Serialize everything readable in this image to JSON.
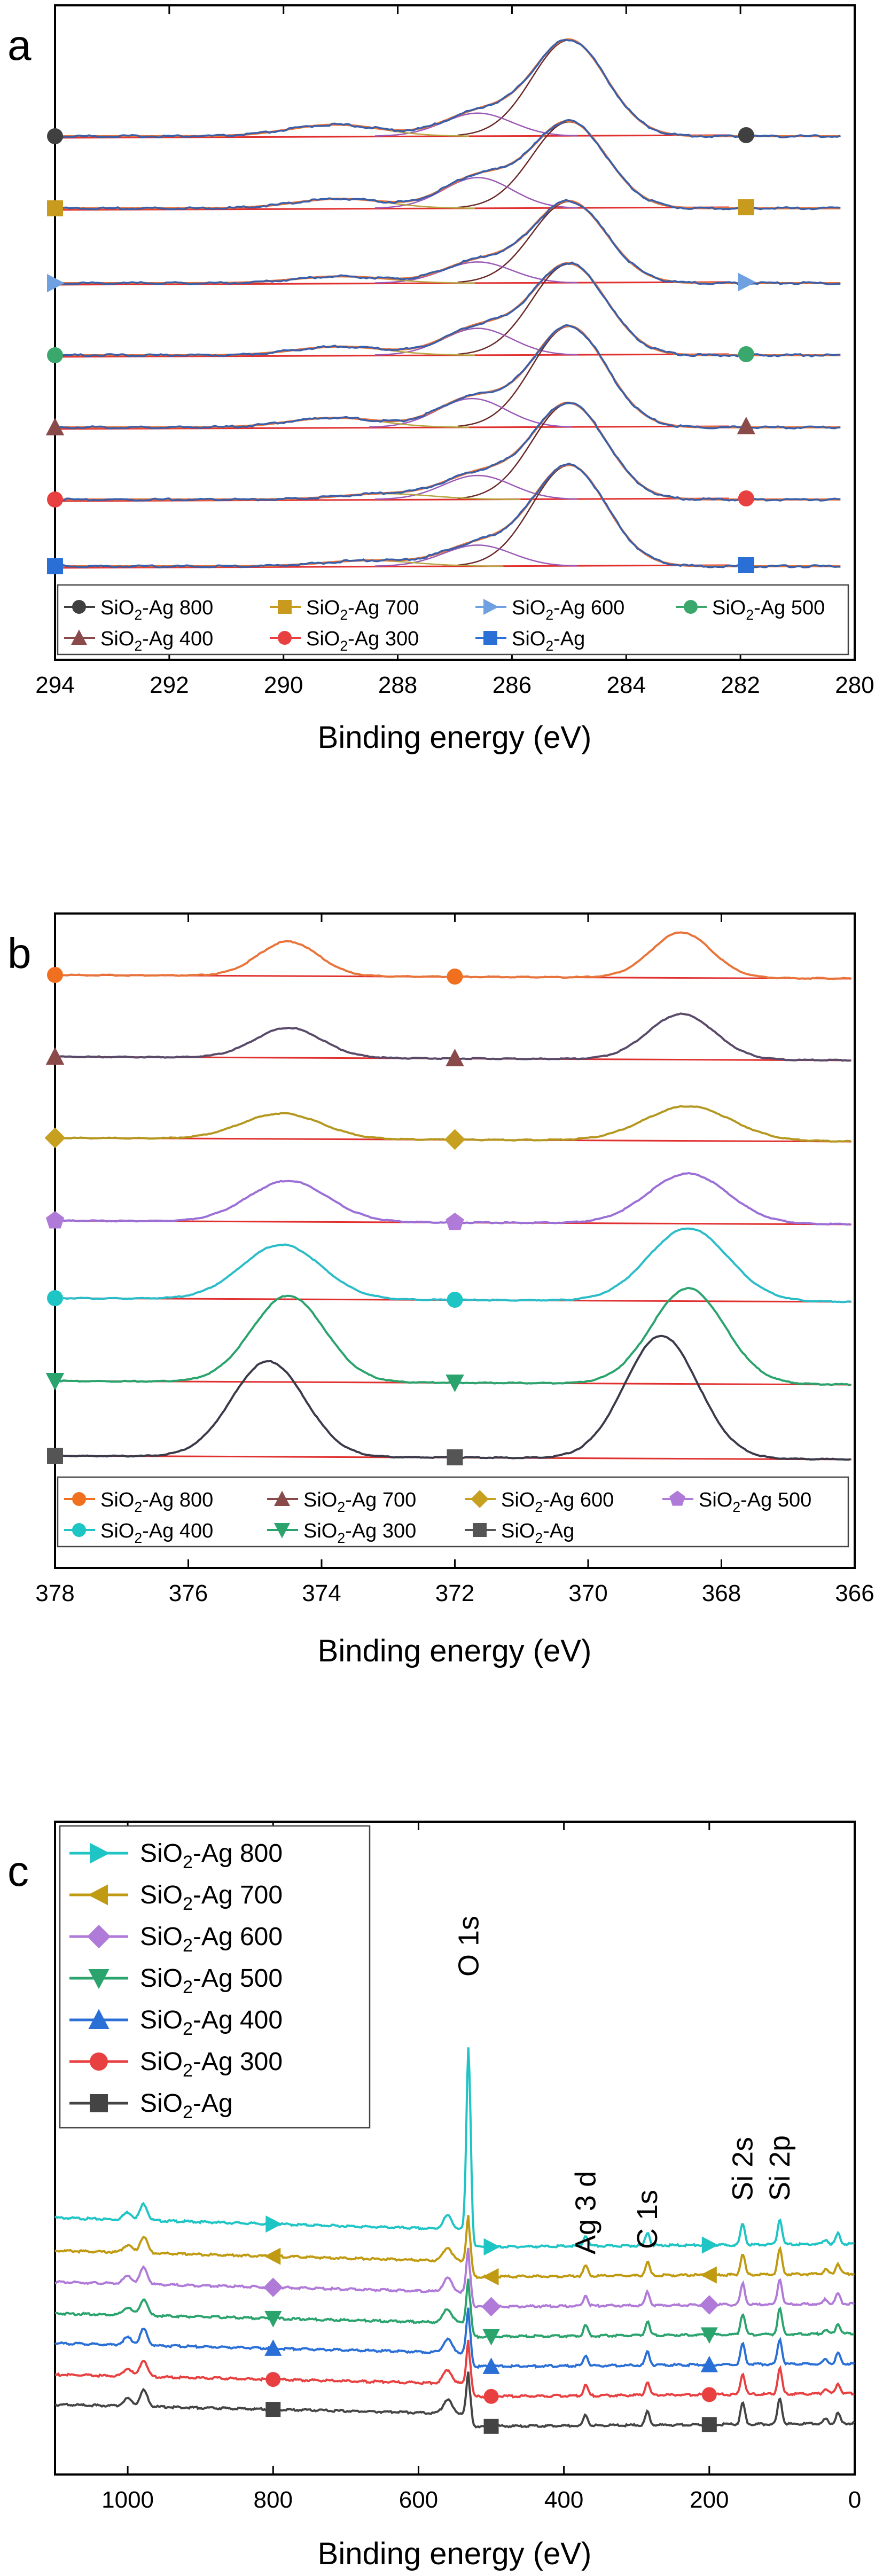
{
  "chart_data": [
    {
      "panel": "a",
      "type": "line",
      "title": "",
      "xlabel": "Binding energy (eV)",
      "ylabel": "",
      "xlim": [
        294,
        280
      ],
      "x_ticks": [
        294,
        292,
        290,
        288,
        286,
        284,
        282,
        280
      ],
      "x_tick_labels": [
        "294",
        "292",
        "290",
        "288",
        "286",
        "284",
        "282",
        "280"
      ],
      "fit_colors": {
        "envelope": "#e8743b",
        "background": "#e03030",
        "component_main": "#6b2a2a",
        "component_2": "#9b59b6",
        "component_3": "#b5a642"
      },
      "series": [
        {
          "name": "SiO2-Ag 800",
          "label_main": "SiO",
          "label_sub": "2",
          "label_rest": "-Ag 800",
          "color": "#3a5fa8",
          "marker": "circle",
          "marker_color": "#404040",
          "peaks": [
            {
              "center": 285.0,
              "amp": 1.0,
              "width": 0.65
            },
            {
              "center": 286.6,
              "amp": 0.24,
              "width": 0.6
            },
            {
              "center": 289.1,
              "amp": 0.12,
              "width": 0.8
            }
          ]
        },
        {
          "name": "SiO2-Ag 700",
          "label_main": "SiO",
          "label_sub": "2",
          "label_rest": "-Ag 700",
          "color": "#3a5fa8",
          "marker": "square",
          "marker_color": "#c89b1e",
          "peaks": [
            {
              "center": 285.0,
              "amp": 0.9,
              "width": 0.65
            },
            {
              "center": 286.6,
              "amp": 0.32,
              "width": 0.6
            },
            {
              "center": 289.0,
              "amp": 0.1,
              "width": 0.8
            }
          ]
        },
        {
          "name": "SiO2-Ag 600",
          "label_main": "SiO",
          "label_sub": "2",
          "label_rest": "-Ag 600",
          "color": "#3a5fa8",
          "marker": "triangle-right",
          "marker_color": "#6fa0e0",
          "peaks": [
            {
              "center": 285.0,
              "amp": 0.85,
              "width": 0.65
            },
            {
              "center": 286.6,
              "amp": 0.22,
              "width": 0.6
            },
            {
              "center": 289.0,
              "amp": 0.07,
              "width": 0.8
            }
          ]
        },
        {
          "name": "SiO2-Ag 500",
          "label_main": "SiO",
          "label_sub": "2",
          "label_rest": "-Ag 500",
          "color": "#3a5fa8",
          "marker": "circle",
          "marker_color": "#3aa76d",
          "peaks": [
            {
              "center": 285.0,
              "amp": 0.95,
              "width": 0.65
            },
            {
              "center": 286.6,
              "amp": 0.28,
              "width": 0.6
            },
            {
              "center": 289.0,
              "amp": 0.09,
              "width": 0.8
            }
          ]
        },
        {
          "name": "SiO2-Ag 400",
          "label_main": "SiO",
          "label_sub": "2",
          "label_rest": "-Ag 400",
          "color": "#3a5fa8",
          "marker": "triangle-up",
          "marker_color": "#8b4a4a",
          "peaks": [
            {
              "center": 285.0,
              "amp": 1.05,
              "width": 0.65
            },
            {
              "center": 286.7,
              "amp": 0.3,
              "width": 0.6
            },
            {
              "center": 289.1,
              "amp": 0.1,
              "width": 0.8
            }
          ]
        },
        {
          "name": "SiO2-Ag 300",
          "label_main": "SiO",
          "label_sub": "2",
          "label_rest": "-Ag 300",
          "color": "#3a5fa8",
          "marker": "circle",
          "marker_color": "#e84040",
          "peaks": [
            {
              "center": 285.0,
              "amp": 1.0,
              "width": 0.65
            },
            {
              "center": 286.6,
              "amp": 0.25,
              "width": 0.6
            },
            {
              "center": 288.2,
              "amp": 0.06,
              "width": 0.8
            }
          ]
        },
        {
          "name": "SiO2-Ag",
          "label_main": "SiO",
          "label_sub": "2",
          "label_rest": "-Ag",
          "color": "#3a5fa8",
          "marker": "square",
          "marker_color": "#2a6fd6",
          "peaks": [
            {
              "center": 285.0,
              "amp": 1.05,
              "width": 0.65
            },
            {
              "center": 286.6,
              "amp": 0.22,
              "width": 0.6
            },
            {
              "center": 288.5,
              "amp": 0.06,
              "width": 0.8
            }
          ]
        }
      ]
    },
    {
      "panel": "b",
      "type": "line",
      "title": "",
      "xlabel": "Binding energy (eV)",
      "ylabel": "",
      "xlim": [
        378,
        366
      ],
      "x_ticks": [
        378,
        376,
        374,
        372,
        370,
        368,
        366
      ],
      "x_tick_labels": [
        "378",
        "376",
        "374",
        "372",
        "370",
        "368",
        "366"
      ],
      "background_color": "#e03030",
      "series": [
        {
          "name": "SiO2-Ag 800",
          "label_main": "SiO",
          "label_sub": "2",
          "label_rest": "-Ag 800",
          "color": "#e8743b",
          "marker": "circle",
          "marker_color": "#f07020",
          "peaks": [
            {
              "center": 374.5,
              "amp": 0.38,
              "width": 0.45
            },
            {
              "center": 368.6,
              "amp": 0.5,
              "width": 0.45
            }
          ]
        },
        {
          "name": "SiO2-Ag 700",
          "label_main": "SiO",
          "label_sub": "2",
          "label_rest": "-Ag 700",
          "color": "#5a4a6a",
          "marker": "triangle-up",
          "marker_color": "#8b4a4a",
          "peaks": [
            {
              "center": 374.5,
              "amp": 0.33,
              "width": 0.5
            },
            {
              "center": 368.6,
              "amp": 0.5,
              "width": 0.5
            }
          ]
        },
        {
          "name": "SiO2-Ag 600",
          "label_main": "SiO",
          "label_sub": "2",
          "label_rest": "-Ag 600",
          "color": "#b59820",
          "marker": "diamond",
          "marker_color": "#c8a020",
          "peaks": [
            {
              "center": 374.6,
              "amp": 0.28,
              "width": 0.6
            },
            {
              "center": 368.5,
              "amp": 0.38,
              "width": 0.65
            }
          ]
        },
        {
          "name": "SiO2-Ag 500",
          "label_main": "SiO",
          "label_sub": "2",
          "label_rest": "-Ag 500",
          "color": "#9b6fd6",
          "marker": "pentagon",
          "marker_color": "#b07ad8",
          "peaks": [
            {
              "center": 374.5,
              "amp": 0.45,
              "width": 0.6
            },
            {
              "center": 368.5,
              "amp": 0.55,
              "width": 0.6
            }
          ]
        },
        {
          "name": "SiO2-Ag 400",
          "label_main": "SiO",
          "label_sub": "2",
          "label_rest": "-Ag 400",
          "color": "#2abcc8",
          "marker": "circle",
          "marker_color": "#1fc4c4",
          "peaks": [
            {
              "center": 374.6,
              "amp": 0.6,
              "width": 0.6
            },
            {
              "center": 368.5,
              "amp": 0.8,
              "width": 0.6
            }
          ]
        },
        {
          "name": "SiO2-Ag 300",
          "label_main": "SiO",
          "label_sub": "2",
          "label_rest": "-Ag 300",
          "color": "#2aa36d",
          "marker": "triangle-down",
          "marker_color": "#2aa36d",
          "peaks": [
            {
              "center": 374.5,
              "amp": 0.95,
              "width": 0.55
            },
            {
              "center": 368.5,
              "amp": 1.05,
              "width": 0.55
            }
          ]
        },
        {
          "name": "SiO2-Ag",
          "label_main": "SiO",
          "label_sub": "2",
          "label_rest": "-Ag",
          "color": "#3a3a4a",
          "marker": "square",
          "marker_color": "#555555",
          "peaks": [
            {
              "center": 374.8,
              "amp": 1.05,
              "width": 0.55
            },
            {
              "center": 368.9,
              "amp": 1.35,
              "width": 0.55
            }
          ]
        }
      ]
    },
    {
      "panel": "c",
      "type": "line",
      "title": "",
      "xlabel": "Binding energy (eV)",
      "ylabel": "",
      "xlim": [
        1100,
        0
      ],
      "x_ticks": [
        1000,
        800,
        600,
        400,
        200,
        0
      ],
      "x_tick_labels": [
        "1000",
        "800",
        "600",
        "400",
        "200",
        "0"
      ],
      "annotations": [
        {
          "text": "O 1s",
          "x": 531
        },
        {
          "text": "Ag 3 d",
          "x": 370
        },
        {
          "text": "C 1s",
          "x": 285
        },
        {
          "text": "Si 2s",
          "x": 154
        },
        {
          "text": "Si 2p",
          "x": 103
        }
      ],
      "series": [
        {
          "name": "SiO2-Ag 800",
          "label_main": "SiO",
          "label_sub": "2",
          "label_rest": "-Ag 800",
          "color": "#1fc4c4",
          "marker": "triangle-right",
          "offset": 6.0,
          "o1s": 6.2,
          "pre_edge": 1.05
        },
        {
          "name": "SiO2-Ag 700",
          "label_main": "SiO",
          "label_sub": "2",
          "label_rest": "-Ag 700",
          "color": "#c09a10",
          "marker": "triangle-left",
          "offset": 5.0,
          "o1s": 1.6,
          "pre_edge": 0.95
        },
        {
          "name": "SiO2-Ag 600",
          "label_main": "SiO",
          "label_sub": "2",
          "label_rest": "-Ag 600",
          "color": "#b07ad8",
          "marker": "diamond",
          "offset": 4.0,
          "o1s": 1.5,
          "pre_edge": 0.9
        },
        {
          "name": "SiO2-Ag 500",
          "label_main": "SiO",
          "label_sub": "2",
          "label_rest": "-Ag 500",
          "color": "#2aa36d",
          "marker": "triangle-down",
          "offset": 3.0,
          "o1s": 1.5,
          "pre_edge": 0.85
        },
        {
          "name": "SiO2-Ag 400",
          "label_main": "SiO",
          "label_sub": "2",
          "label_rest": "-Ag 400",
          "color": "#2a6fd6",
          "marker": "triangle-up",
          "offset": 2.0,
          "o1s": 1.5,
          "pre_edge": 0.85
        },
        {
          "name": "SiO2-Ag 300",
          "label_main": "SiO",
          "label_sub": "2",
          "label_rest": "-Ag 300",
          "color": "#e84040",
          "marker": "circle",
          "offset": 1.0,
          "o1s": 1.5,
          "pre_edge": 0.8
        },
        {
          "name": "SiO2-Ag",
          "label_main": "SiO",
          "label_sub": "2",
          "label_rest": "-Ag",
          "color": "#444444",
          "marker": "square",
          "offset": 0.0,
          "o1s": 1.4,
          "pre_edge": 0.8
        }
      ]
    }
  ],
  "panel_labels": {
    "a": "a",
    "b": "b",
    "c": "c"
  }
}
